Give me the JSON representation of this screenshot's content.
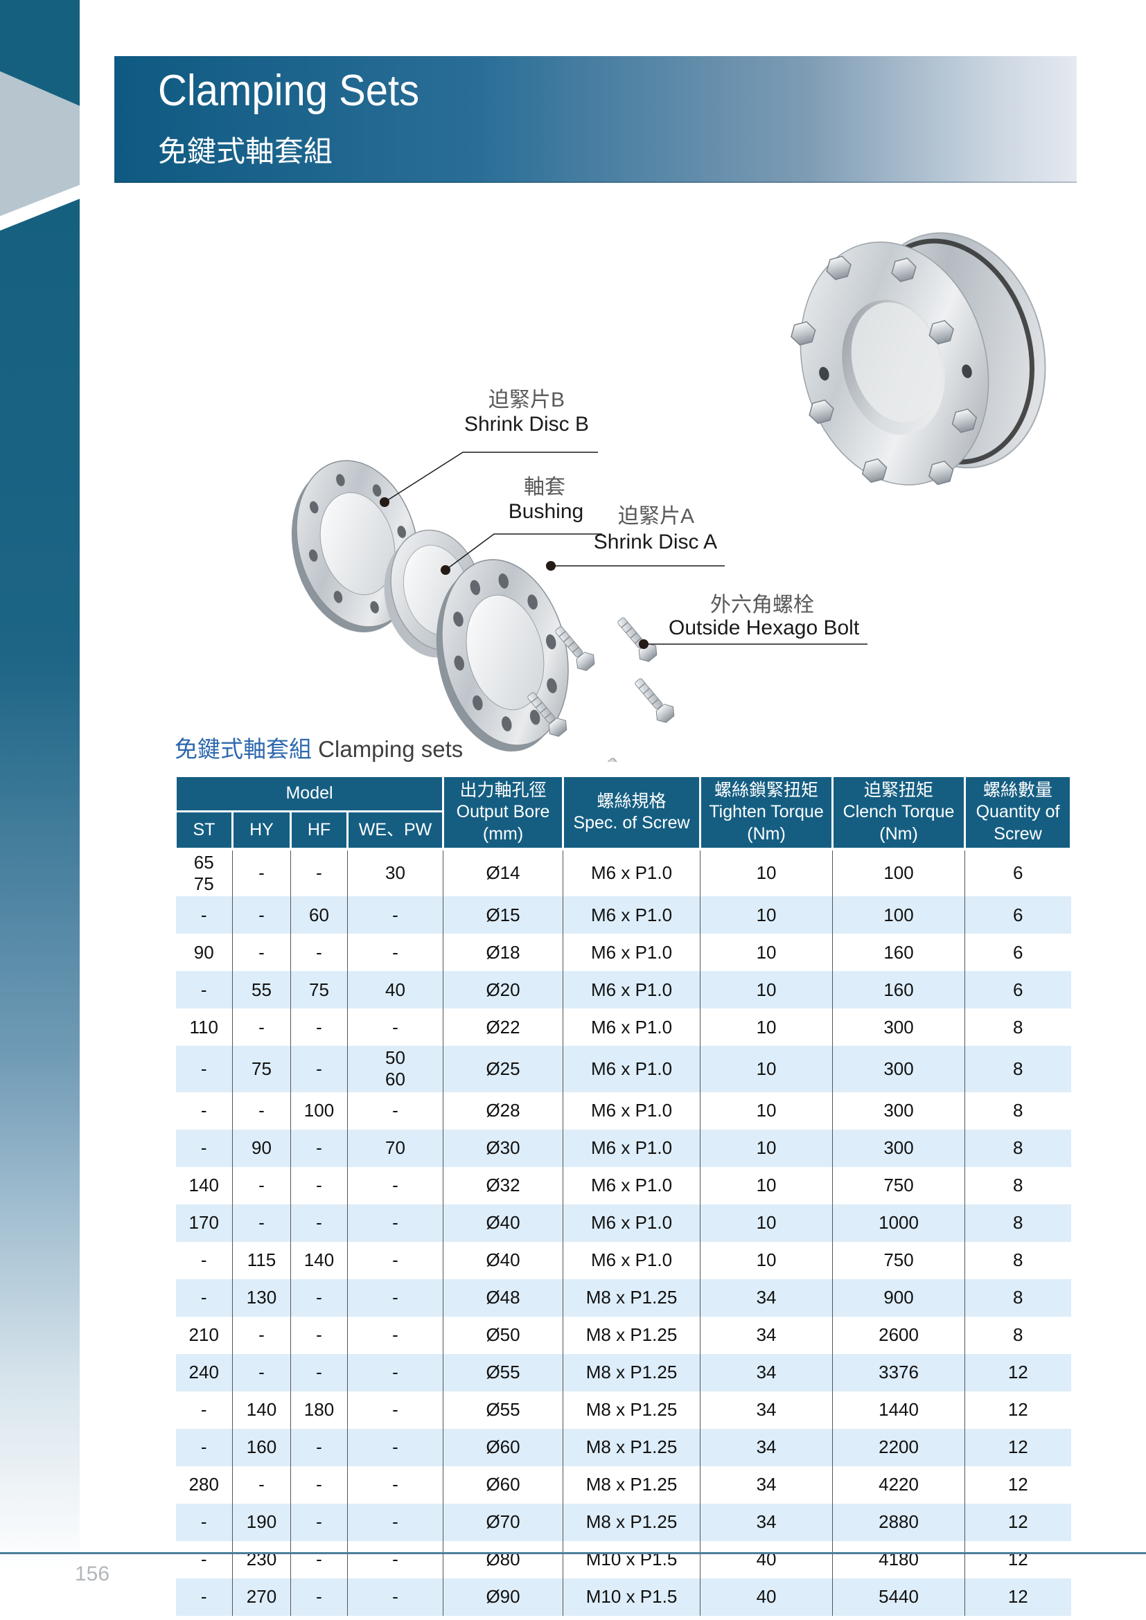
{
  "band": {
    "title_en": "Clamping Sets",
    "title_zh": "免鍵式軸套組"
  },
  "diagram": {
    "labels": {
      "shrink_disc_b": {
        "zh": "迫緊片B",
        "en": "Shrink Disc B"
      },
      "bushing": {
        "zh": "軸套",
        "en": "Bushing"
      },
      "shrink_disc_a": {
        "zh": "迫緊片A",
        "en": "Shrink Disc A"
      },
      "hex_bolt": {
        "zh": "外六角螺栓",
        "en": "Outside Hexago Bolt"
      }
    }
  },
  "table": {
    "title_zh": "免鍵式軸套組",
    "title_en": "Clamping sets",
    "header": {
      "model_label": "Model",
      "model_columns": [
        "ST",
        "HY",
        "HF",
        "WE、PW"
      ],
      "output_bore": {
        "zh": "出力軸孔徑",
        "en": "Output Bore",
        "unit": "(mm)"
      },
      "spec_screw": {
        "zh": "螺絲規格",
        "en": "Spec. of Screw",
        "unit": ""
      },
      "tighten": {
        "zh": "螺絲鎖緊扭矩",
        "en": "Tighten Torque",
        "unit": "(Nm)"
      },
      "clench": {
        "zh": "迫緊扭矩",
        "en": "Clench Torque",
        "unit": "(Nm)"
      },
      "quantity": {
        "zh": "螺絲數量",
        "en": "Quantity of",
        "unit": "Screw"
      }
    },
    "rows": [
      {
        "st": "65\n75",
        "hy": "-",
        "hf": "-",
        "we": "30",
        "bore": "Ø14",
        "screw": "M6 x P1.0",
        "tighten": "10",
        "clench": "100",
        "qty": "6"
      },
      {
        "st": "-",
        "hy": "-",
        "hf": "60",
        "we": "-",
        "bore": "Ø15",
        "screw": "M6 x P1.0",
        "tighten": "10",
        "clench": "100",
        "qty": "6"
      },
      {
        "st": "90",
        "hy": "-",
        "hf": "-",
        "we": "-",
        "bore": "Ø18",
        "screw": "M6 x P1.0",
        "tighten": "10",
        "clench": "160",
        "qty": "6"
      },
      {
        "st": "-",
        "hy": "55",
        "hf": "75",
        "we": "40",
        "bore": "Ø20",
        "screw": "M6 x P1.0",
        "tighten": "10",
        "clench": "160",
        "qty": "6"
      },
      {
        "st": "110",
        "hy": "-",
        "hf": "-",
        "we": "-",
        "bore": "Ø22",
        "screw": "M6 x P1.0",
        "tighten": "10",
        "clench": "300",
        "qty": "8"
      },
      {
        "st": "-",
        "hy": "75",
        "hf": "-",
        "we": "50\n60",
        "bore": "Ø25",
        "screw": "M6 x P1.0",
        "tighten": "10",
        "clench": "300",
        "qty": "8"
      },
      {
        "st": "-",
        "hy": "-",
        "hf": "100",
        "we": "-",
        "bore": "Ø28",
        "screw": "M6 x P1.0",
        "tighten": "10",
        "clench": "300",
        "qty": "8"
      },
      {
        "st": "-",
        "hy": "90",
        "hf": "-",
        "we": "70",
        "bore": "Ø30",
        "screw": "M6 x P1.0",
        "tighten": "10",
        "clench": "300",
        "qty": "8"
      },
      {
        "st": "140",
        "hy": "-",
        "hf": "-",
        "we": "-",
        "bore": "Ø32",
        "screw": "M6 x P1.0",
        "tighten": "10",
        "clench": "750",
        "qty": "8"
      },
      {
        "st": "170",
        "hy": "-",
        "hf": "-",
        "we": "-",
        "bore": "Ø40",
        "screw": "M6 x P1.0",
        "tighten": "10",
        "clench": "1000",
        "qty": "8"
      },
      {
        "st": "-",
        "hy": "115",
        "hf": "140",
        "we": "-",
        "bore": "Ø40",
        "screw": "M6 x P1.0",
        "tighten": "10",
        "clench": "750",
        "qty": "8"
      },
      {
        "st": "-",
        "hy": "130",
        "hf": "-",
        "we": "-",
        "bore": "Ø48",
        "screw": "M8 x P1.25",
        "tighten": "34",
        "clench": "900",
        "qty": "8"
      },
      {
        "st": "210",
        "hy": "-",
        "hf": "-",
        "we": "-",
        "bore": "Ø50",
        "screw": "M8 x P1.25",
        "tighten": "34",
        "clench": "2600",
        "qty": "8"
      },
      {
        "st": "240",
        "hy": "-",
        "hf": "-",
        "we": "-",
        "bore": "Ø55",
        "screw": "M8 x P1.25",
        "tighten": "34",
        "clench": "3376",
        "qty": "12"
      },
      {
        "st": "-",
        "hy": "140",
        "hf": "180",
        "we": "-",
        "bore": "Ø55",
        "screw": "M8 x P1.25",
        "tighten": "34",
        "clench": "1440",
        "qty": "12"
      },
      {
        "st": "-",
        "hy": "160",
        "hf": "-",
        "we": "-",
        "bore": "Ø60",
        "screw": "M8 x P1.25",
        "tighten": "34",
        "clench": "2200",
        "qty": "12"
      },
      {
        "st": "280",
        "hy": "-",
        "hf": "-",
        "we": "-",
        "bore": "Ø60",
        "screw": "M8 x P1.25",
        "tighten": "34",
        "clench": "4220",
        "qty": "12"
      },
      {
        "st": "-",
        "hy": "190",
        "hf": "-",
        "we": "-",
        "bore": "Ø70",
        "screw": "M8 x P1.25",
        "tighten": "34",
        "clench": "2880",
        "qty": "12"
      },
      {
        "st": "-",
        "hy": "230",
        "hf": "-",
        "we": "-",
        "bore": "Ø80",
        "screw": "M10 x P1.5",
        "tighten": "40",
        "clench": "4180",
        "qty": "12"
      },
      {
        "st": "-",
        "hy": "270",
        "hf": "-",
        "we": "-",
        "bore": "Ø90",
        "screw": "M10 x P1.5",
        "tighten": "40",
        "clench": "5440",
        "qty": "12"
      }
    ]
  },
  "footer": {
    "page_number": "156"
  },
  "colors": {
    "header_teal": "#155e82",
    "row_alt_blue": "#ddedf9",
    "band_dark": "#0f5a82",
    "strip_dark": "#16607f",
    "strip_gray": "#b6c5ce",
    "footer_line": "#4b7e9b",
    "title_blue": "#2d68ae"
  }
}
